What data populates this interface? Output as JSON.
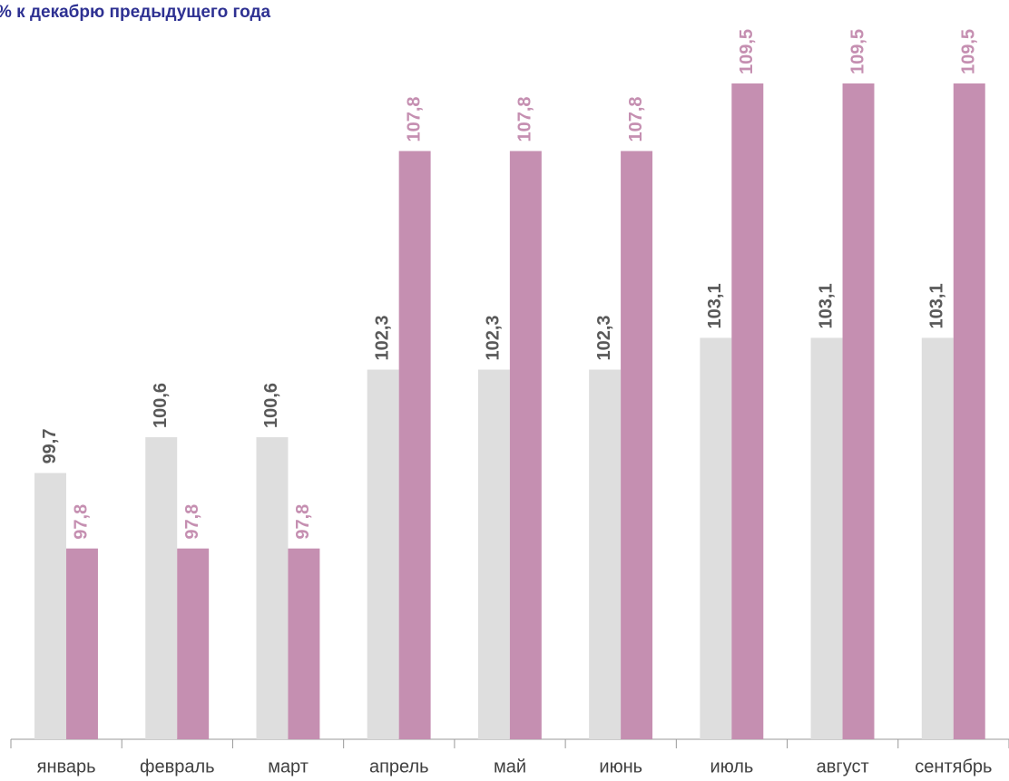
{
  "chart_data": {
    "type": "bar",
    "title": "% к декабрю предыдущего года",
    "categories": [
      "январь",
      "февраль",
      "март",
      "апрель",
      "май",
      "июнь",
      "июль",
      "август",
      "сентябрь"
    ],
    "series": [
      {
        "color": "#dedede",
        "label_color": "#595959",
        "values": [
          99.7,
          100.6,
          100.6,
          102.3,
          102.3,
          102.3,
          103.1,
          103.1,
          103.1
        ],
        "value_labels": [
          "99,7",
          "100,6",
          "100,6",
          "102,3",
          "102,3",
          "102,3",
          "103,1",
          "103,1",
          "103,1"
        ]
      },
      {
        "color": "#c58fb1",
        "label_color": "#c58fb1",
        "values": [
          97.8,
          97.8,
          97.8,
          107.8,
          107.8,
          107.8,
          109.5,
          109.5,
          109.5
        ],
        "value_labels": [
          "97,8",
          "97,8",
          "97,8",
          "107,8",
          "107,8",
          "107,8",
          "109,5",
          "109,5",
          "109,5"
        ]
      }
    ],
    "ylim": [
      93,
      111.6
    ]
  }
}
